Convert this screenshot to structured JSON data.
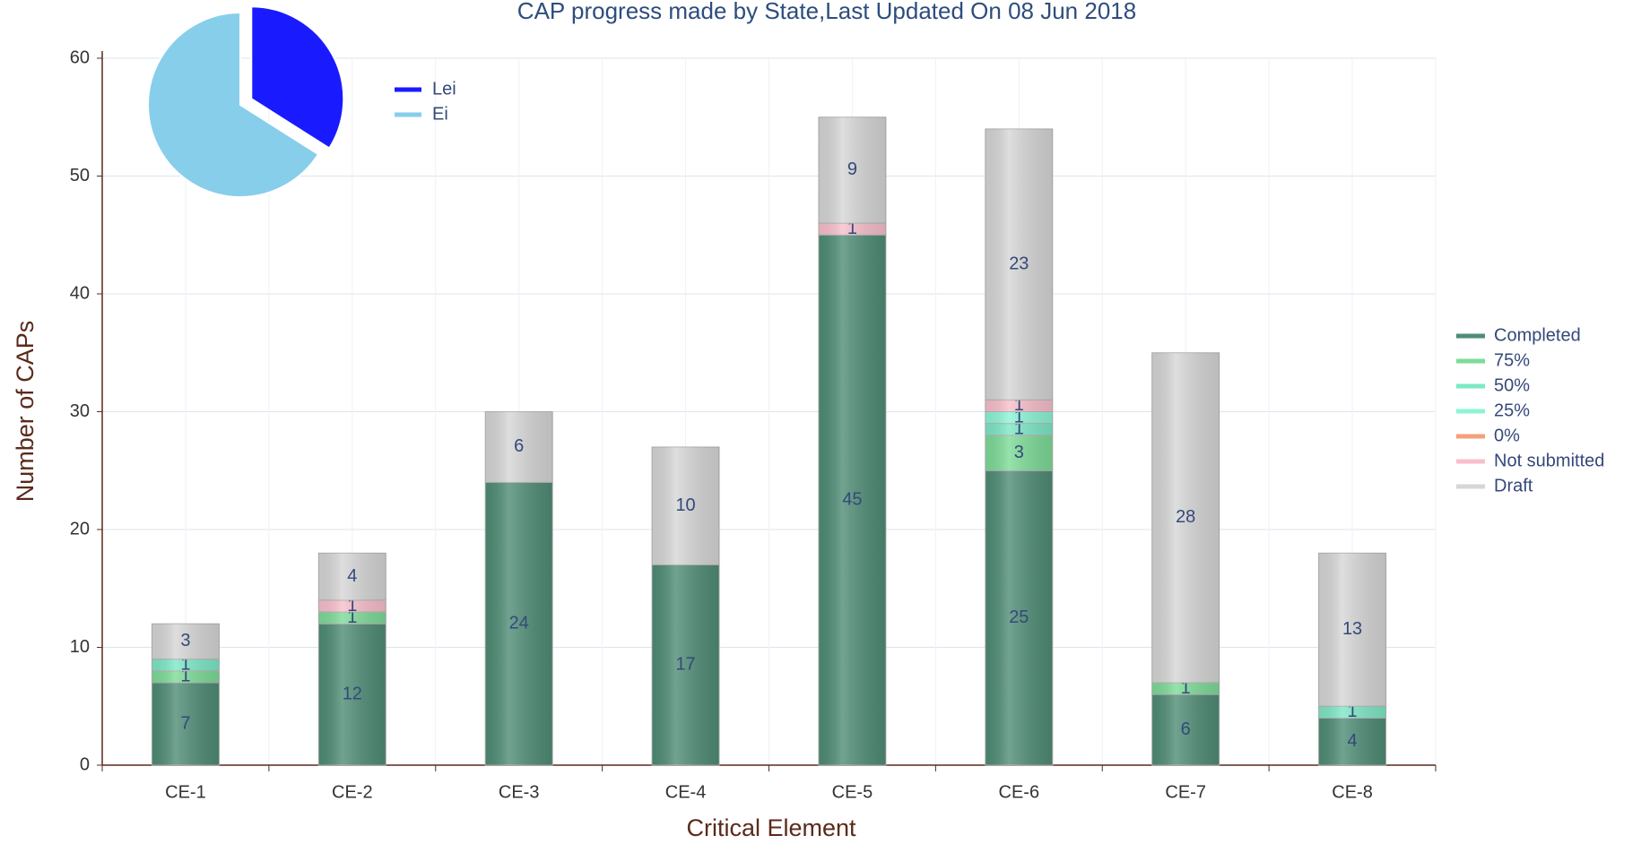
{
  "chart_data": [
    {
      "type": "bar",
      "title": "CAP progress made by State,Last Updated On 08 Jun 2018",
      "x_label": "Critical Element",
      "y_label": "Number of CAPs",
      "categories": [
        "CE-1",
        "CE-2",
        "CE-3",
        "CE-4",
        "CE-5",
        "CE-6",
        "CE-7",
        "CE-8"
      ],
      "series": [
        {
          "name": "Completed",
          "color": "#4e8c75",
          "values": [
            7,
            12,
            24,
            17,
            45,
            25,
            6,
            4
          ]
        },
        {
          "name": "75%",
          "color": "#7ddb98",
          "values": [
            1,
            1,
            0,
            0,
            0,
            3,
            1,
            0
          ]
        },
        {
          "name": "50%",
          "color": "#7de8c6",
          "values": [
            1,
            0,
            0,
            0,
            0,
            1,
            0,
            1
          ]
        },
        {
          "name": "25%",
          "color": "#8cf5d6",
          "values": [
            0,
            0,
            0,
            0,
            0,
            1,
            0,
            0
          ]
        },
        {
          "name": "0%",
          "color": "#f4a07a",
          "values": [
            0,
            0,
            0,
            0,
            0,
            0,
            0,
            0
          ]
        },
        {
          "name": "Not submitted",
          "color": "#f8bfcb",
          "values": [
            0,
            1,
            0,
            0,
            1,
            1,
            0,
            0
          ]
        },
        {
          "name": "Draft",
          "color": "#d6d6d6",
          "values": [
            3,
            4,
            6,
            10,
            9,
            23,
            28,
            13
          ]
        }
      ],
      "ylim": [
        0,
        60
      ],
      "yticks": [
        0,
        10,
        20,
        30,
        40,
        50,
        60
      ],
      "grid": true,
      "legend": "right",
      "stacked": true
    },
    {
      "type": "pie",
      "categories": [
        "Lei",
        "Ei"
      ],
      "colors": [
        "#1a1aff",
        "#87ceeb"
      ],
      "values": [
        34,
        66
      ],
      "legend": "right"
    }
  ]
}
